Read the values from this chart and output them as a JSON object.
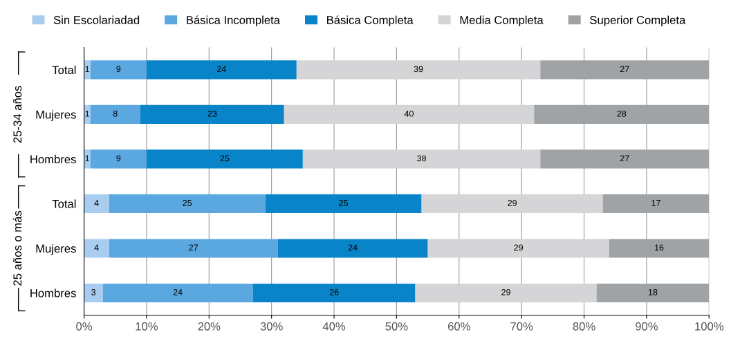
{
  "chart_data": {
    "type": "bar",
    "orientation": "horizontal",
    "stacked": true,
    "data_labels": true,
    "grid": "x",
    "legend": "top",
    "categories": [
      "Total",
      "Mujeres",
      "Hombres",
      "Total",
      "Mujeres",
      "Hombres"
    ],
    "series": [
      {
        "name": "Sin Escolariadad",
        "color": "#a9cdf0",
        "values": [
          1,
          1,
          1,
          4,
          4,
          3
        ]
      },
      {
        "name": "Básica Incompleta",
        "color": "#5ba7e0",
        "values": [
          9,
          8,
          9,
          25,
          27,
          24
        ]
      },
      {
        "name": "Básica Completa",
        "color": "#0a84c8",
        "values": [
          24,
          23,
          25,
          25,
          24,
          26
        ]
      },
      {
        "name": "Media Completa",
        "color": "#d5d4d6",
        "values": [
          39,
          40,
          38,
          29,
          29,
          29
        ]
      },
      {
        "name": "Superior Completa",
        "color": "#a0a3a5",
        "values": [
          27,
          28,
          27,
          17,
          16,
          18
        ]
      }
    ],
    "xlim": [
      0,
      100
    ],
    "xticks": [
      {
        "value": 0,
        "label": "0%"
      },
      {
        "value": 10,
        "label": "10%"
      },
      {
        "value": 20,
        "label": "20%"
      },
      {
        "value": 30,
        "label": "30%"
      },
      {
        "value": 40,
        "label": "40%"
      },
      {
        "value": 50,
        "label": "50%"
      },
      {
        "value": 60,
        "label": "60%"
      },
      {
        "value": 70,
        "label": "70%"
      },
      {
        "value": 80,
        "label": "80%"
      },
      {
        "value": 90,
        "label": "90%"
      },
      {
        "value": 100,
        "label": "100%"
      }
    ],
    "annotations": [
      "25-34 años",
      "25 años o más"
    ]
  }
}
